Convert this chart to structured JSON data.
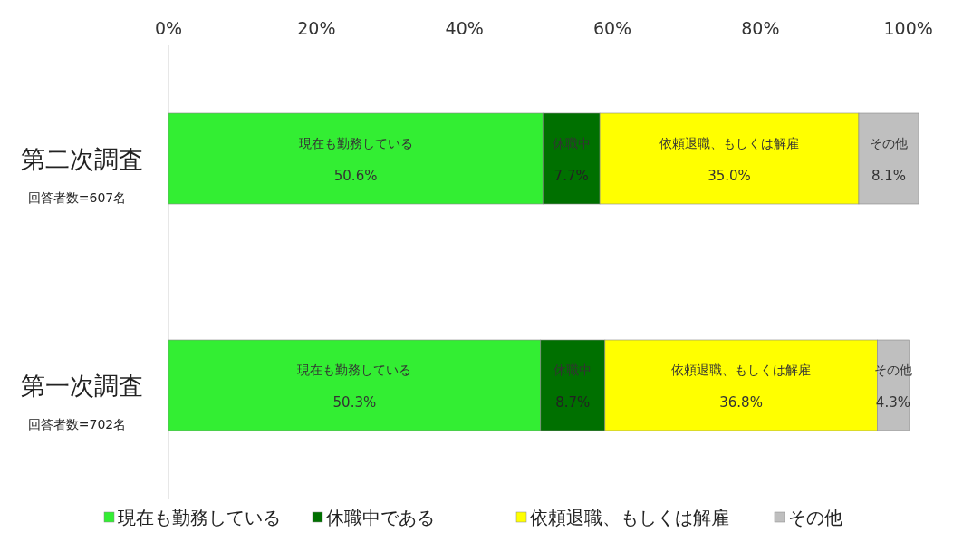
{
  "chart_data": {
    "type": "bar",
    "orientation": "horizontal",
    "stacked": true,
    "categories": [
      "第二次調査",
      "第一次調査"
    ],
    "xlim": [
      0,
      102
    ],
    "xticks": [
      {
        "value": 0,
        "label": "0%"
      },
      {
        "value": 20,
        "label": "20%"
      },
      {
        "value": 40,
        "label": "40%"
      },
      {
        "value": 60,
        "label": "60%"
      },
      {
        "value": 80,
        "label": "80%"
      },
      {
        "value": 100,
        "label": "100%"
      }
    ],
    "series": [
      {
        "name": "現在も勤務している",
        "color": "#33ee33",
        "values": [
          50.6,
          50.3
        ],
        "value_labels": [
          "50.6%",
          "50.3%"
        ]
      },
      {
        "name": "休職中である",
        "color": "#007000",
        "values": [
          7.7,
          8.7
        ],
        "value_labels": [
          "7.7%",
          "8.7%"
        ]
      },
      {
        "name": "依頼退職、もしくは解雇",
        "color": "#ffff00",
        "values": [
          35.0,
          36.8
        ],
        "value_labels": [
          "35.0%",
          "36.8%"
        ]
      },
      {
        "name": "その他",
        "color": "#bfbfbf",
        "values": [
          8.1,
          4.3
        ],
        "value_labels": [
          "8.1%",
          "4.3%"
        ]
      }
    ],
    "annotations": [
      "回答者数=607名",
      "回答者数=702名",
      "現在も勤務している",
      "休職中",
      "依頼退職、もしくは解雇",
      "その他",
      "現在も勤務している",
      "休職中",
      "依頼退職、もしくは解雇",
      "その他"
    ],
    "legend": "bottom",
    "grid": false
  }
}
